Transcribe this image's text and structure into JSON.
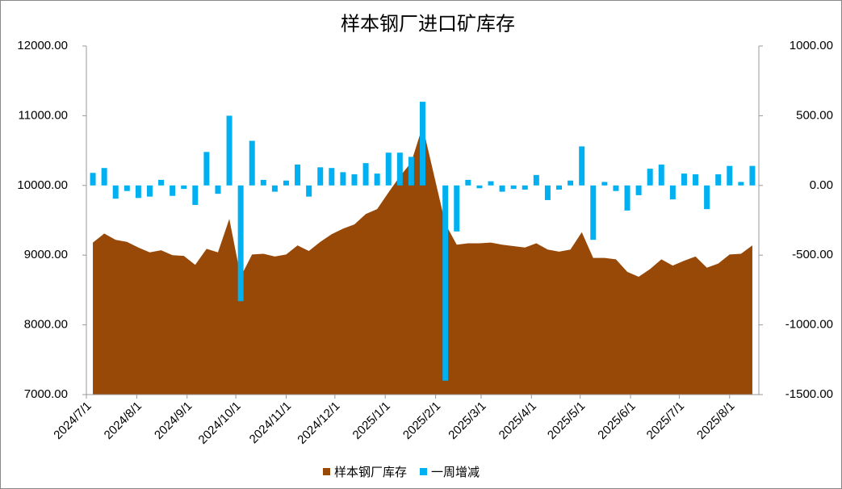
{
  "chart_data": {
    "type": "area-bar",
    "title": "样本钢厂进口矿库存",
    "x": [
      "2024/7/5",
      "2024/7/12",
      "2024/7/19",
      "2024/7/26",
      "2024/8/2",
      "2024/8/9",
      "2024/8/16",
      "2024/8/23",
      "2024/8/30",
      "2024/9/6",
      "2024/9/13",
      "2024/9/20",
      "2024/9/27",
      "2024/10/4",
      "2024/10/11",
      "2024/10/18",
      "2024/10/25",
      "2024/11/1",
      "2024/11/8",
      "2024/11/15",
      "2024/11/22",
      "2024/11/29",
      "2024/12/6",
      "2024/12/13",
      "2024/12/20",
      "2024/12/27",
      "2025/1/3",
      "2025/1/10",
      "2025/1/17",
      "2025/1/24",
      "2025/2/7",
      "2025/2/14",
      "2025/2/21",
      "2025/2/28",
      "2025/3/7",
      "2025/3/14",
      "2025/3/21",
      "2025/3/28",
      "2025/4/4",
      "2025/4/11",
      "2025/4/18",
      "2025/4/25",
      "2025/5/2",
      "2025/5/9",
      "2025/5/16",
      "2025/5/23",
      "2025/5/30",
      "2025/6/6",
      "2025/6/13",
      "2025/6/20",
      "2025/6/27",
      "2025/7/4",
      "2025/7/11",
      "2025/7/18",
      "2025/7/25",
      "2025/8/1",
      "2025/8/8",
      "2025/8/15"
    ],
    "series": [
      {
        "name": "样本钢厂库存",
        "type": "area",
        "color": "#984807",
        "values": [
          9180,
          9310,
          9220,
          9190,
          9110,
          9040,
          9070,
          9000,
          8990,
          8860,
          9090,
          9040,
          9520,
          8690,
          9010,
          9020,
          8980,
          9010,
          9140,
          9060,
          9190,
          9300,
          9380,
          9440,
          9590,
          9660,
          9900,
          10130,
          10330,
          10850,
          9450,
          9150,
          9170,
          9170,
          9180,
          9150,
          9130,
          9110,
          9170,
          9080,
          9050,
          9080,
          9330,
          8960,
          8960,
          8940,
          8760,
          8690,
          8800,
          8940,
          8850,
          8920,
          8980,
          8820,
          8880,
          9010,
          9020,
          9140
        ]
      },
      {
        "name": "一周增减",
        "type": "bar",
        "axis": "y2",
        "color": "#00b0f0",
        "values": [
          90,
          125,
          -95,
          -40,
          -90,
          -80,
          40,
          -75,
          -25,
          -140,
          240,
          -60,
          500,
          -830,
          320,
          40,
          -45,
          35,
          150,
          -80,
          130,
          125,
          95,
          80,
          160,
          85,
          235,
          235,
          205,
          600,
          -1400,
          -330,
          40,
          -20,
          30,
          -45,
          -25,
          -30,
          75,
          -105,
          -30,
          35,
          280,
          -390,
          25,
          -40,
          -180,
          -70,
          120,
          150,
          -100,
          85,
          80,
          -170,
          80,
          140,
          25,
          140
        ]
      }
    ],
    "xlim": [
      "2024/7/1",
      "2025/8/19"
    ],
    "xticks": [
      "2024/7/1",
      "2024/8/1",
      "2024/9/1",
      "2024/10/1",
      "2024/11/1",
      "2024/12/1",
      "2025/1/1",
      "2025/2/1",
      "2025/3/1",
      "2025/4/1",
      "2025/5/1",
      "2025/6/1",
      "2025/7/1",
      "2025/8/1"
    ],
    "ylim": [
      7000,
      12000
    ],
    "yticks": [
      {
        "value": 7000,
        "label": "7000.00"
      },
      {
        "value": 8000,
        "label": "8000.00"
      },
      {
        "value": 9000,
        "label": "9000.00"
      },
      {
        "value": 10000,
        "label": "10000.00"
      },
      {
        "value": 11000,
        "label": "11000.00"
      },
      {
        "value": 12000,
        "label": "12000.00"
      }
    ],
    "y2lim": [
      -1500,
      1000
    ],
    "y2ticks": [
      {
        "value": -1500,
        "label": "-1500.00"
      },
      {
        "value": -1000,
        "label": "-1000.00"
      },
      {
        "value": -500,
        "label": "-500.00"
      },
      {
        "value": 0,
        "label": "0.00"
      },
      {
        "value": 500,
        "label": "500.00"
      },
      {
        "value": 1000,
        "label": "1000.00"
      }
    ],
    "legend": "bottom"
  }
}
